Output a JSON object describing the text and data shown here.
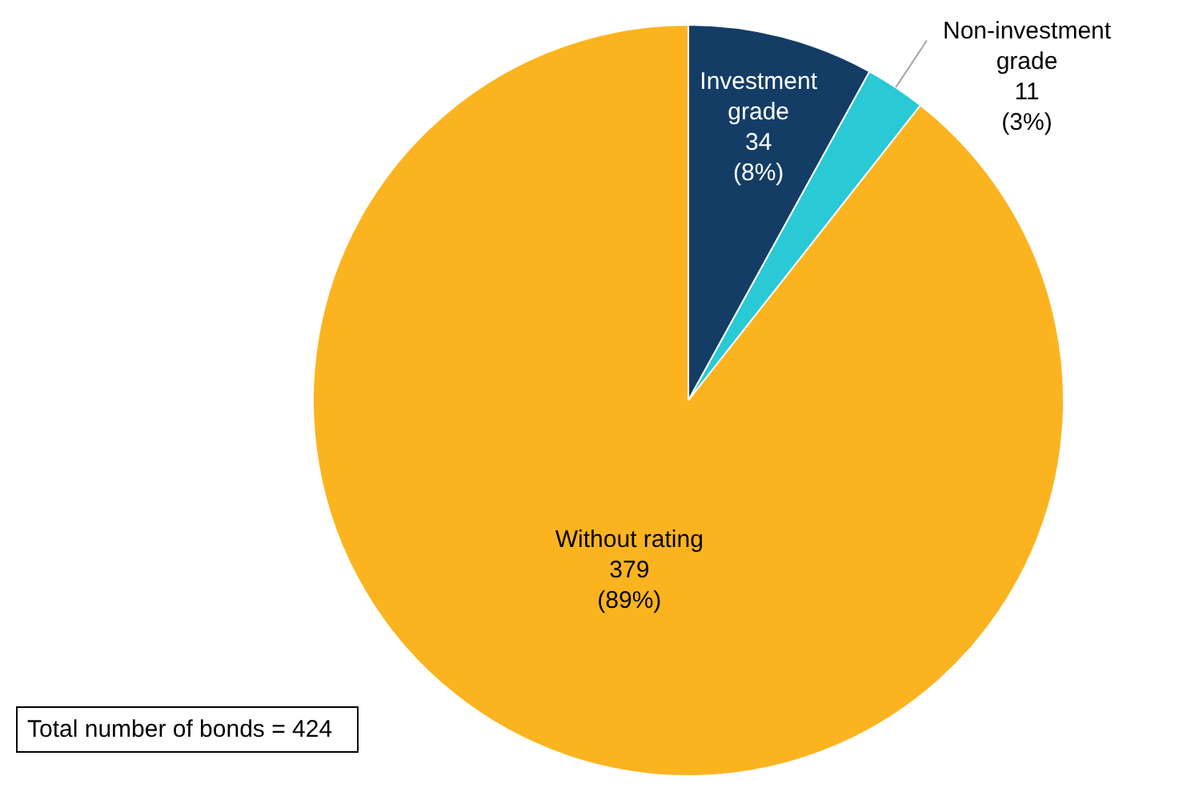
{
  "chart_data": {
    "type": "pie",
    "categories": [
      "Investment grade",
      "Non-investment grade",
      "Without rating"
    ],
    "values": [
      34,
      11,
      379
    ],
    "colors": [
      "#143d66",
      "#29c9d6",
      "#fbb41f"
    ],
    "value_labels": [
      "34\n(8%)",
      "11\n(3%)",
      "379\n(89%)"
    ],
    "legend": false,
    "annotations": [
      "Total number of bonds = 424"
    ]
  }
}
